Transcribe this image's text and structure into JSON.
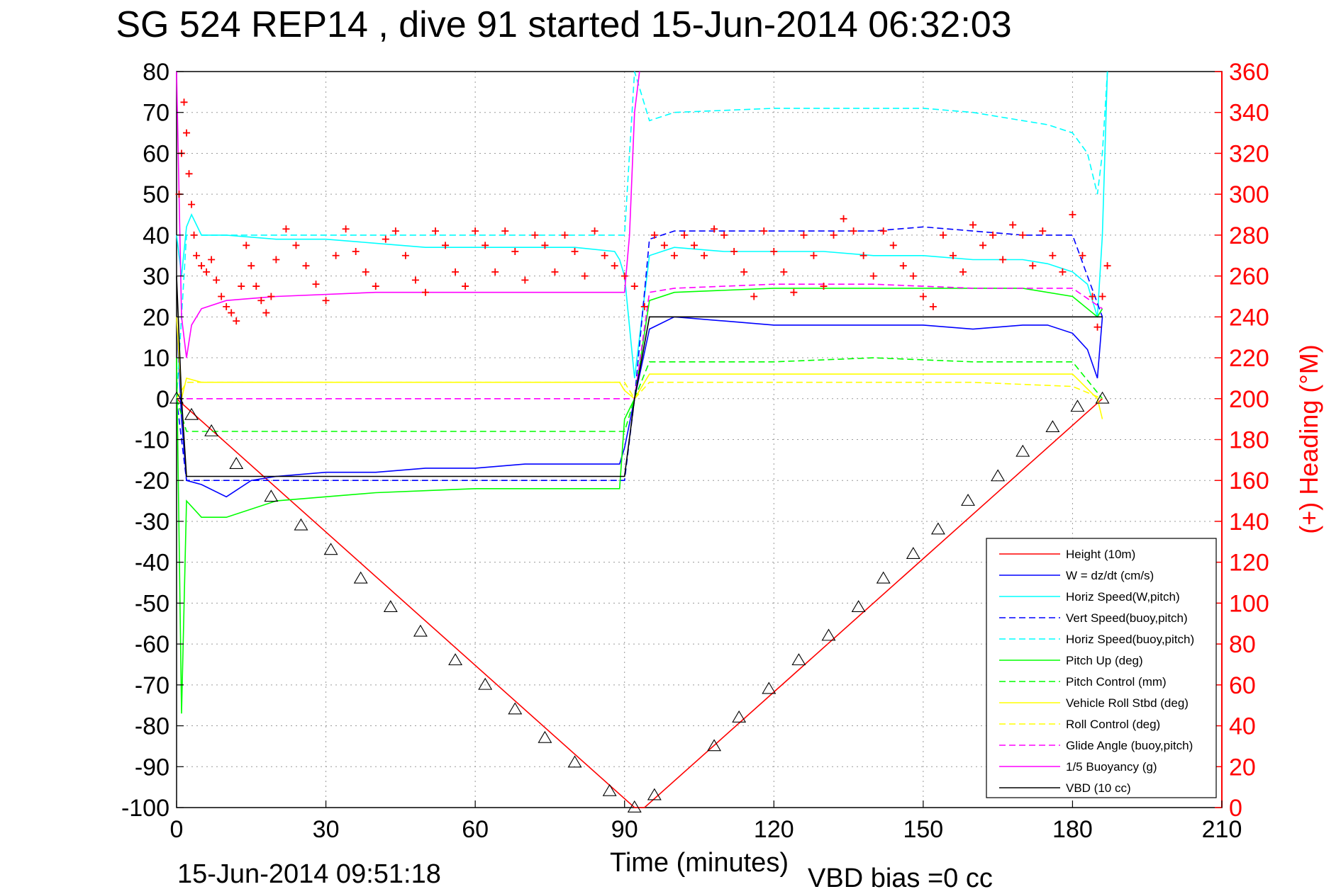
{
  "chart_data": {
    "type": "line",
    "title": "SG 524   REP14  , dive 91 started 15-Jun-2014 06:32:03",
    "xlabel": "Time (minutes)",
    "ylabel_right": "(+) Heading (°M)",
    "xlim": [
      0,
      210
    ],
    "ylim": [
      -100,
      80
    ],
    "ylim_right": [
      0,
      360
    ],
    "xticks": [
      "0",
      "30",
      "60",
      "90",
      "120",
      "150",
      "180",
      "210"
    ],
    "yticks": [
      "80",
      "70",
      "60",
      "50",
      "40",
      "30",
      "20",
      "10",
      "0",
      "-10",
      "-20",
      "-30",
      "-40",
      "-50",
      "-60",
      "-70",
      "-80",
      "-90",
      "-100"
    ],
    "yticks_right": [
      "360",
      "340",
      "320",
      "300",
      "280",
      "260",
      "240",
      "220",
      "200",
      "180",
      "160",
      "140",
      "120",
      "100",
      "80",
      "60",
      "40",
      "20",
      "0"
    ],
    "grid": true,
    "legend_position": "bottom-right",
    "footer_left": "15-Jun-2014 09:51:18",
    "footer_right": "VBD bias =0 cc",
    "series": [
      {
        "name": "Height (10m)",
        "color": "#ff0000",
        "style": "solid",
        "x": [
          0,
          92,
          94,
          186
        ],
        "y": [
          0,
          -100,
          -100,
          0
        ]
      },
      {
        "name": "W = dz/dt (cm/s)",
        "color": "#0000ff",
        "style": "solid",
        "x": [
          0,
          1,
          2,
          5,
          10,
          15,
          20,
          30,
          40,
          50,
          60,
          70,
          80,
          89,
          90,
          92,
          95,
          100,
          110,
          120,
          130,
          140,
          150,
          160,
          170,
          175,
          180,
          183,
          185,
          186
        ],
        "y": [
          20,
          -5,
          -20,
          -21,
          -24,
          -20,
          -19,
          -18,
          -18,
          -17,
          -17,
          -16,
          -16,
          -16,
          -12,
          0,
          17,
          20,
          19,
          18,
          18,
          18,
          18,
          17,
          18,
          18,
          16,
          12,
          5,
          20
        ]
      },
      {
        "name": "Horiz Speed(W,pitch)",
        "color": "#00ffff",
        "style": "solid",
        "x": [
          0,
          1,
          2,
          3,
          5,
          10,
          20,
          30,
          40,
          50,
          60,
          70,
          80,
          88,
          89,
          90,
          92,
          95,
          100,
          110,
          120,
          130,
          140,
          150,
          160,
          170,
          175,
          180,
          183,
          185,
          186,
          187
        ],
        "y": [
          40,
          30,
          42,
          45,
          40,
          40,
          39,
          39,
          38,
          37,
          37,
          37,
          37,
          36,
          34,
          30,
          5,
          35,
          37,
          36,
          36,
          36,
          35,
          35,
          34,
          34,
          33,
          31,
          28,
          20,
          40,
          80
        ]
      },
      {
        "name": "Vert Speed(buoy,pitch)",
        "color": "#0000ff",
        "style": "dashed",
        "x": [
          0,
          2,
          90,
          92,
          95,
          100,
          120,
          140,
          150,
          160,
          170,
          180,
          186
        ],
        "y": [
          0,
          -20,
          -20,
          0,
          39,
          41,
          41,
          41,
          42,
          41,
          40,
          40,
          20
        ]
      },
      {
        "name": "Horiz Speed(buoy,pitch)",
        "color": "#00ffff",
        "style": "dashed",
        "x": [
          0,
          2,
          90,
          92,
          95,
          100,
          120,
          140,
          150,
          160,
          170,
          175,
          180,
          183,
          185,
          186,
          187
        ],
        "y": [
          0,
          40,
          40,
          80,
          68,
          70,
          71,
          71,
          71,
          70,
          68,
          67,
          65,
          60,
          50,
          60,
          80
        ]
      },
      {
        "name": "Pitch Up (deg)",
        "color": "#00ff00",
        "style": "solid",
        "x": [
          0,
          1,
          2,
          5,
          10,
          20,
          40,
          60,
          80,
          89,
          90,
          92,
          95,
          100,
          120,
          140,
          160,
          170,
          180,
          185,
          186
        ],
        "y": [
          10,
          -77,
          -25,
          -29,
          -29,
          -25,
          -23,
          -22,
          -22,
          -22,
          -5,
          0,
          24,
          26,
          27,
          27,
          27,
          27,
          25,
          20,
          22
        ]
      },
      {
        "name": "Pitch Control (mm)",
        "color": "#00ff00",
        "style": "dashed",
        "x": [
          0,
          2,
          90,
          92,
          95,
          100,
          120,
          140,
          160,
          180,
          186
        ],
        "y": [
          0,
          -8,
          -8,
          0,
          9,
          9,
          9,
          10,
          9,
          9,
          0
        ]
      },
      {
        "name": "Vehicle Roll Stbd (deg)",
        "color": "#ffff00",
        "style": "solid",
        "x": [
          0,
          1,
          2,
          5,
          10,
          30,
          60,
          89,
          90,
          92,
          95,
          100,
          120,
          140,
          160,
          180,
          185,
          186
        ],
        "y": [
          20,
          0,
          5,
          4,
          4,
          4,
          4,
          4,
          2,
          0,
          6,
          6,
          6,
          6,
          6,
          6,
          0,
          -5
        ]
      },
      {
        "name": "Roll Control (deg)",
        "color": "#ffff00",
        "style": "dashed",
        "x": [
          0,
          2,
          90,
          92,
          95,
          100,
          120,
          140,
          160,
          180,
          186
        ],
        "y": [
          0,
          4,
          4,
          0,
          4,
          4,
          4,
          4,
          4,
          3,
          0
        ]
      },
      {
        "name": "Glide Angle (buoy,pitch)",
        "color": "#ff00ff",
        "style": "dashed",
        "x": [
          0,
          2,
          90,
          92,
          95,
          100,
          120,
          140,
          160,
          180,
          186
        ],
        "y": [
          0,
          0,
          0,
          0,
          26,
          27,
          28,
          28,
          27,
          27,
          22
        ]
      },
      {
        "name": "1/5 Buoyancy (g)",
        "color": "#ff00ff",
        "style": "solid",
        "x": [
          0,
          1,
          2,
          3,
          5,
          10,
          20,
          40,
          60,
          80,
          90,
          91,
          92,
          93
        ],
        "y": [
          80,
          20,
          10,
          18,
          22,
          24,
          25,
          26,
          26,
          26,
          26,
          40,
          70,
          80
        ]
      },
      {
        "name": "VBD (10 cc)",
        "color": "#000000",
        "style": "solid",
        "x": [
          0,
          1,
          2,
          90,
          92,
          95,
          96,
          186
        ],
        "y": [
          30,
          0,
          -19,
          -19,
          0,
          20,
          20,
          20
        ]
      }
    ],
    "heading_series": {
      "name": "Heading (°M)",
      "color": "#ff0000",
      "marker": "+",
      "axis": "right",
      "x": [
        0.5,
        1,
        1.5,
        2,
        2.5,
        3,
        3.5,
        4,
        5,
        6,
        7,
        8,
        9,
        10,
        11,
        12,
        13,
        14,
        15,
        16,
        17,
        18,
        19,
        20,
        22,
        24,
        26,
        28,
        30,
        32,
        34,
        36,
        38,
        40,
        42,
        44,
        46,
        48,
        50,
        52,
        54,
        56,
        58,
        60,
        62,
        64,
        66,
        68,
        70,
        72,
        74,
        76,
        78,
        80,
        82,
        84,
        86,
        88,
        90,
        92,
        94,
        96,
        98,
        100,
        102,
        104,
        106,
        108,
        110,
        112,
        114,
        116,
        118,
        120,
        122,
        124,
        126,
        128,
        130,
        132,
        134,
        136,
        138,
        140,
        142,
        144,
        146,
        148,
        150,
        152,
        154,
        156,
        158,
        160,
        162,
        164,
        166,
        168,
        170,
        172,
        174,
        176,
        178,
        180,
        182,
        184,
        185,
        186,
        187
      ],
      "y": [
        300,
        320,
        345,
        330,
        310,
        295,
        280,
        270,
        265,
        262,
        268,
        258,
        250,
        245,
        242,
        238,
        255,
        275,
        265,
        255,
        248,
        242,
        250,
        268,
        283,
        275,
        265,
        256,
        248,
        270,
        283,
        272,
        262,
        255,
        278,
        282,
        270,
        258,
        252,
        282,
        275,
        262,
        255,
        282,
        275,
        262,
        282,
        272,
        258,
        280,
        275,
        262,
        280,
        272,
        260,
        282,
        270,
        265,
        260,
        255,
        245,
        280,
        275,
        270,
        280,
        275,
        270,
        283,
        280,
        272,
        262,
        250,
        282,
        272,
        262,
        252,
        280,
        270,
        255,
        280,
        288,
        282,
        270,
        260,
        282,
        275,
        265,
        260,
        250,
        245,
        280,
        270,
        262,
        285,
        275,
        280,
        268,
        285,
        280,
        265,
        282,
        270,
        262,
        290,
        270,
        250,
        235,
        250,
        265
      ]
    },
    "markers": {
      "type": "triangle",
      "color": "#000000",
      "x": [
        0,
        3,
        7,
        12,
        19,
        25,
        31,
        37,
        43,
        49,
        56,
        62,
        68,
        74,
        80,
        87,
        92,
        96,
        108,
        113,
        119,
        125,
        131,
        137,
        142,
        148,
        153,
        159,
        165,
        170,
        176,
        181,
        186
      ],
      "y": [
        0,
        -4,
        -8,
        -16,
        -24,
        -31,
        -37,
        -44,
        -51,
        -57,
        -64,
        -70,
        -76,
        -83,
        -89,
        -96,
        -100,
        -97,
        -85,
        -78,
        -71,
        -64,
        -58,
        -51,
        -44,
        -38,
        -32,
        -25,
        -19,
        -13,
        -7,
        -2,
        0
      ]
    }
  }
}
